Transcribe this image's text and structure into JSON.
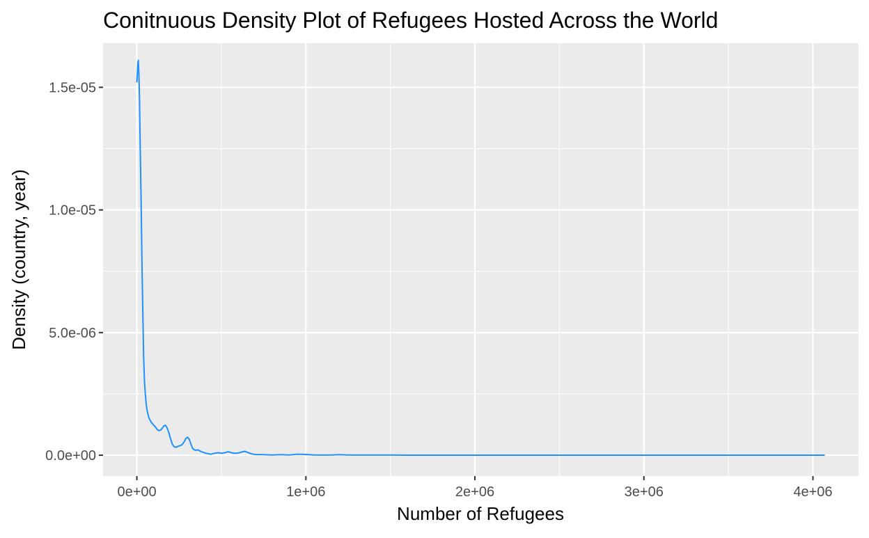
{
  "chart_data": {
    "type": "line",
    "title": "Conitnuous Density Plot of Refugees Hosted Across the World",
    "xlabel": "Number of Refugees",
    "ylabel": "Density (country, year)",
    "xlim": [
      -200000,
      4270000
    ],
    "ylim": [
      -8.5e-07,
      1.68e-05
    ],
    "x_ticks": [
      0,
      1000000,
      2000000,
      3000000,
      4000000
    ],
    "x_tick_labels": [
      "0e+00",
      "1e+06",
      "2e+06",
      "3e+06",
      "4e+06"
    ],
    "y_ticks": [
      0,
      5e-06,
      1e-05,
      1.5e-05
    ],
    "y_tick_labels": [
      "0.0e+00",
      "5.0e-06",
      "1.0e-05",
      "1.5e-05"
    ],
    "grid": true,
    "series_color": "#1E90FF",
    "panel_background": "#EBEBEB",
    "grid_color": "#FFFFFF",
    "series": [
      {
        "x": [
          0,
          3000,
          6000,
          9000,
          12000,
          16000,
          20000,
          25000,
          30000,
          35000,
          40000,
          45000,
          50000,
          55000,
          60000,
          65000,
          70000,
          80000,
          90000,
          100000,
          110000,
          120000,
          130000,
          140000,
          150000,
          160000,
          170000,
          180000,
          190000,
          200000,
          210000,
          220000,
          230000,
          240000,
          250000,
          260000,
          270000,
          280000,
          290000,
          300000,
          310000,
          320000,
          330000,
          340000,
          350000,
          360000,
          380000,
          400000,
          420000,
          440000,
          460000,
          480000,
          500000,
          520000,
          540000,
          560000,
          580000,
          600000,
          620000,
          640000,
          660000,
          680000,
          700000,
          750000,
          800000,
          850000,
          900000,
          950000,
          1000000,
          1050000,
          1100000,
          1150000,
          1200000,
          1250000,
          1300000,
          1350000,
          1400000,
          1450000,
          1500000,
          1600000,
          1800000,
          2000000,
          2500000,
          3000000,
          3500000,
          4000000,
          4070000
        ],
        "values": [
          1.52e-05,
          1.56e-05,
          1.6e-05,
          1.61e-05,
          1.55e-05,
          1.45e-05,
          1.25e-05,
          1.05e-05,
          8e-06,
          6e-06,
          4e-06,
          3e-06,
          2.5e-06,
          2.1e-06,
          1.85e-06,
          1.7e-06,
          1.55e-06,
          1.4e-06,
          1.3e-06,
          1.22e-06,
          1.15e-06,
          1.05e-06,
          1e-06,
          1.02e-06,
          1.1e-06,
          1.2e-06,
          1.22e-06,
          1.1e-06,
          9e-07,
          6.5e-07,
          4.5e-07,
          3.5e-07,
          3.2e-07,
          3.5e-07,
          3.8e-07,
          4e-07,
          4.5e-07,
          5.5e-07,
          6.8e-07,
          7.3e-07,
          6.5e-07,
          4.5e-07,
          2.8e-07,
          2.2e-07,
          2e-07,
          2.2e-07,
          1.5e-07,
          1e-07,
          6e-08,
          4e-08,
          8e-08,
          1e-07,
          8e-08,
          1e-07,
          1.4e-07,
          1e-07,
          8e-08,
          9e-08,
          1.3e-07,
          1.6e-07,
          1e-07,
          5e-08,
          3e-08,
          2e-08,
          1e-08,
          2e-08,
          1e-08,
          4e-08,
          3e-08,
          1e-08,
          1e-08,
          1e-08,
          2e-08,
          1e-08,
          1e-08,
          1e-08,
          1e-08,
          1e-08,
          1e-08,
          0,
          0,
          0,
          0,
          0,
          0,
          0,
          0
        ]
      }
    ]
  }
}
